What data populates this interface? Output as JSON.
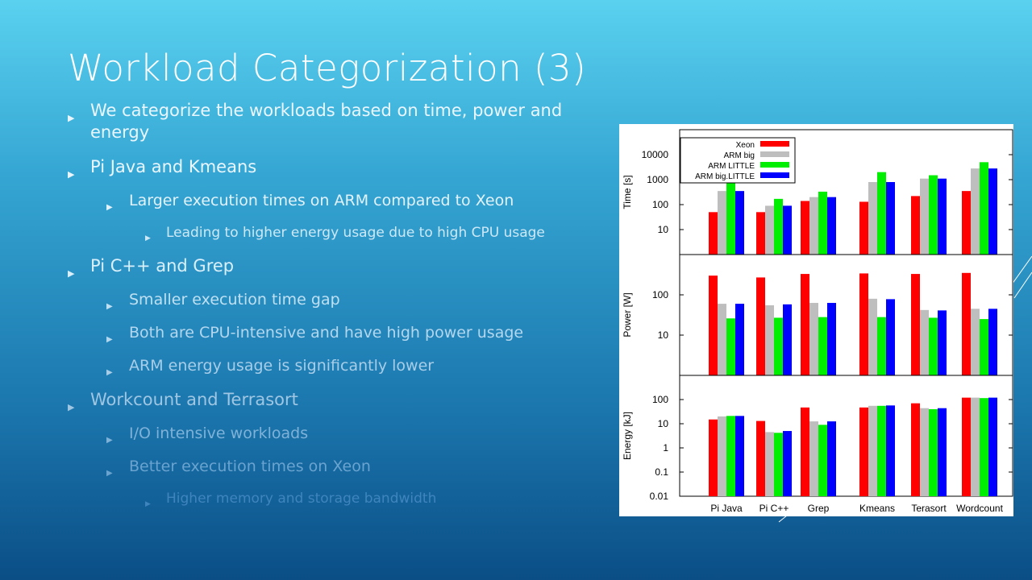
{
  "slide": {
    "title": "Workload Categorization (3)",
    "bullets": [
      {
        "level": 1,
        "text": "We categorize the workloads based on time, power and energy",
        "color": "#eaf6ff"
      },
      {
        "level": 1,
        "text": "Pi Java and Kmeans",
        "color": "#eaf6ff"
      },
      {
        "level": 2,
        "text": "Larger execution times on ARM compared to Xeon",
        "color": "#e2f2fb"
      },
      {
        "level": 3,
        "text": "Leading to higher energy usage due to high CPU usage",
        "color": "#cde8f6"
      },
      {
        "level": 1,
        "text": "Pi C++ and Grep",
        "color": "#d9f0fb"
      },
      {
        "level": 2,
        "text": "Smaller execution time gap",
        "color": "#bfe0f2"
      },
      {
        "level": 2,
        "text": "Both are CPU-intensive and have high power usage",
        "color": "#b3d7ee"
      },
      {
        "level": 2,
        "text": "ARM energy usage is significantly lower",
        "color": "#a7cde8"
      },
      {
        "level": 1,
        "text": "Workcount and Terrasort",
        "color": "#9fc6e2"
      },
      {
        "level": 2,
        "text": "I/O intensive workloads",
        "color": "#7fb2d8"
      },
      {
        "level": 2,
        "text": "Better execution times on Xeon",
        "color": "#6aa3cf"
      },
      {
        "level": 3,
        "text": "Higher memory and storage bandwidth",
        "color": "#3f84bd"
      }
    ]
  },
  "chart_data": {
    "type": "bar",
    "categories": [
      "Pi Java",
      "Pi C++",
      "Grep",
      "Kmeans",
      "Terasort",
      "Wordcount"
    ],
    "legend": [
      "Xeon",
      "ARM big",
      "ARM LITTLE",
      "ARM big.LITTLE"
    ],
    "colors": [
      "#ff0000",
      "#bebebe",
      "#00ee00",
      "#0000ff"
    ],
    "legend_position": "top-left",
    "scale": "log",
    "panels": [
      {
        "ylabel": "Time [s]",
        "ylim": [
          1,
          100000
        ],
        "yticks": [
          10,
          100,
          1000,
          10000
        ],
        "ytick_labels": [
          "10",
          "100",
          "1000",
          "10000"
        ],
        "series": [
          {
            "name": "Xeon",
            "values": [
              50,
              50,
              140,
              130,
              220,
              350
            ]
          },
          {
            "name": "ARM big",
            "values": [
              350,
              90,
              200,
              800,
              1100,
              2800
            ]
          },
          {
            "name": "ARM LITTLE",
            "values": [
              800,
              170,
              330,
              2000,
              1500,
              5000
            ]
          },
          {
            "name": "ARM big.LITTLE",
            "values": [
              350,
              90,
              200,
              800,
              1100,
              2800
            ]
          }
        ]
      },
      {
        "ylabel": "Power [W]",
        "ylim": [
          1,
          1000
        ],
        "yticks": [
          10,
          100
        ],
        "ytick_labels": [
          "10",
          "100"
        ],
        "series": [
          {
            "name": "Xeon",
            "values": [
              300,
              270,
              330,
              340,
              330,
              350
            ]
          },
          {
            "name": "ARM big",
            "values": [
              60,
              55,
              63,
              80,
              42,
              45
            ]
          },
          {
            "name": "ARM LITTLE",
            "values": [
              26,
              27,
              28,
              28,
              27,
              25
            ]
          },
          {
            "name": "ARM big.LITTLE",
            "values": [
              60,
              58,
              63,
              78,
              41,
              45
            ]
          }
        ]
      },
      {
        "ylabel": "Energy [kJ]",
        "ylim": [
          0.01,
          1000
        ],
        "yticks": [
          0.01,
          0.1,
          1,
          10,
          100
        ],
        "ytick_labels": [
          "0.01",
          "0.1",
          "1",
          "10",
          "100"
        ],
        "series": [
          {
            "name": "Xeon",
            "values": [
              15,
              13,
              47,
              47,
              70,
              120
            ]
          },
          {
            "name": "ARM big",
            "values": [
              20,
              4.5,
              12.5,
              55,
              44,
              120
            ]
          },
          {
            "name": "ARM LITTLE",
            "values": [
              21,
              4.2,
              9,
              55,
              40,
              115
            ]
          },
          {
            "name": "ARM big.LITTLE",
            "values": [
              21,
              5,
              12.5,
              57,
              44,
              120
            ]
          }
        ]
      }
    ]
  }
}
